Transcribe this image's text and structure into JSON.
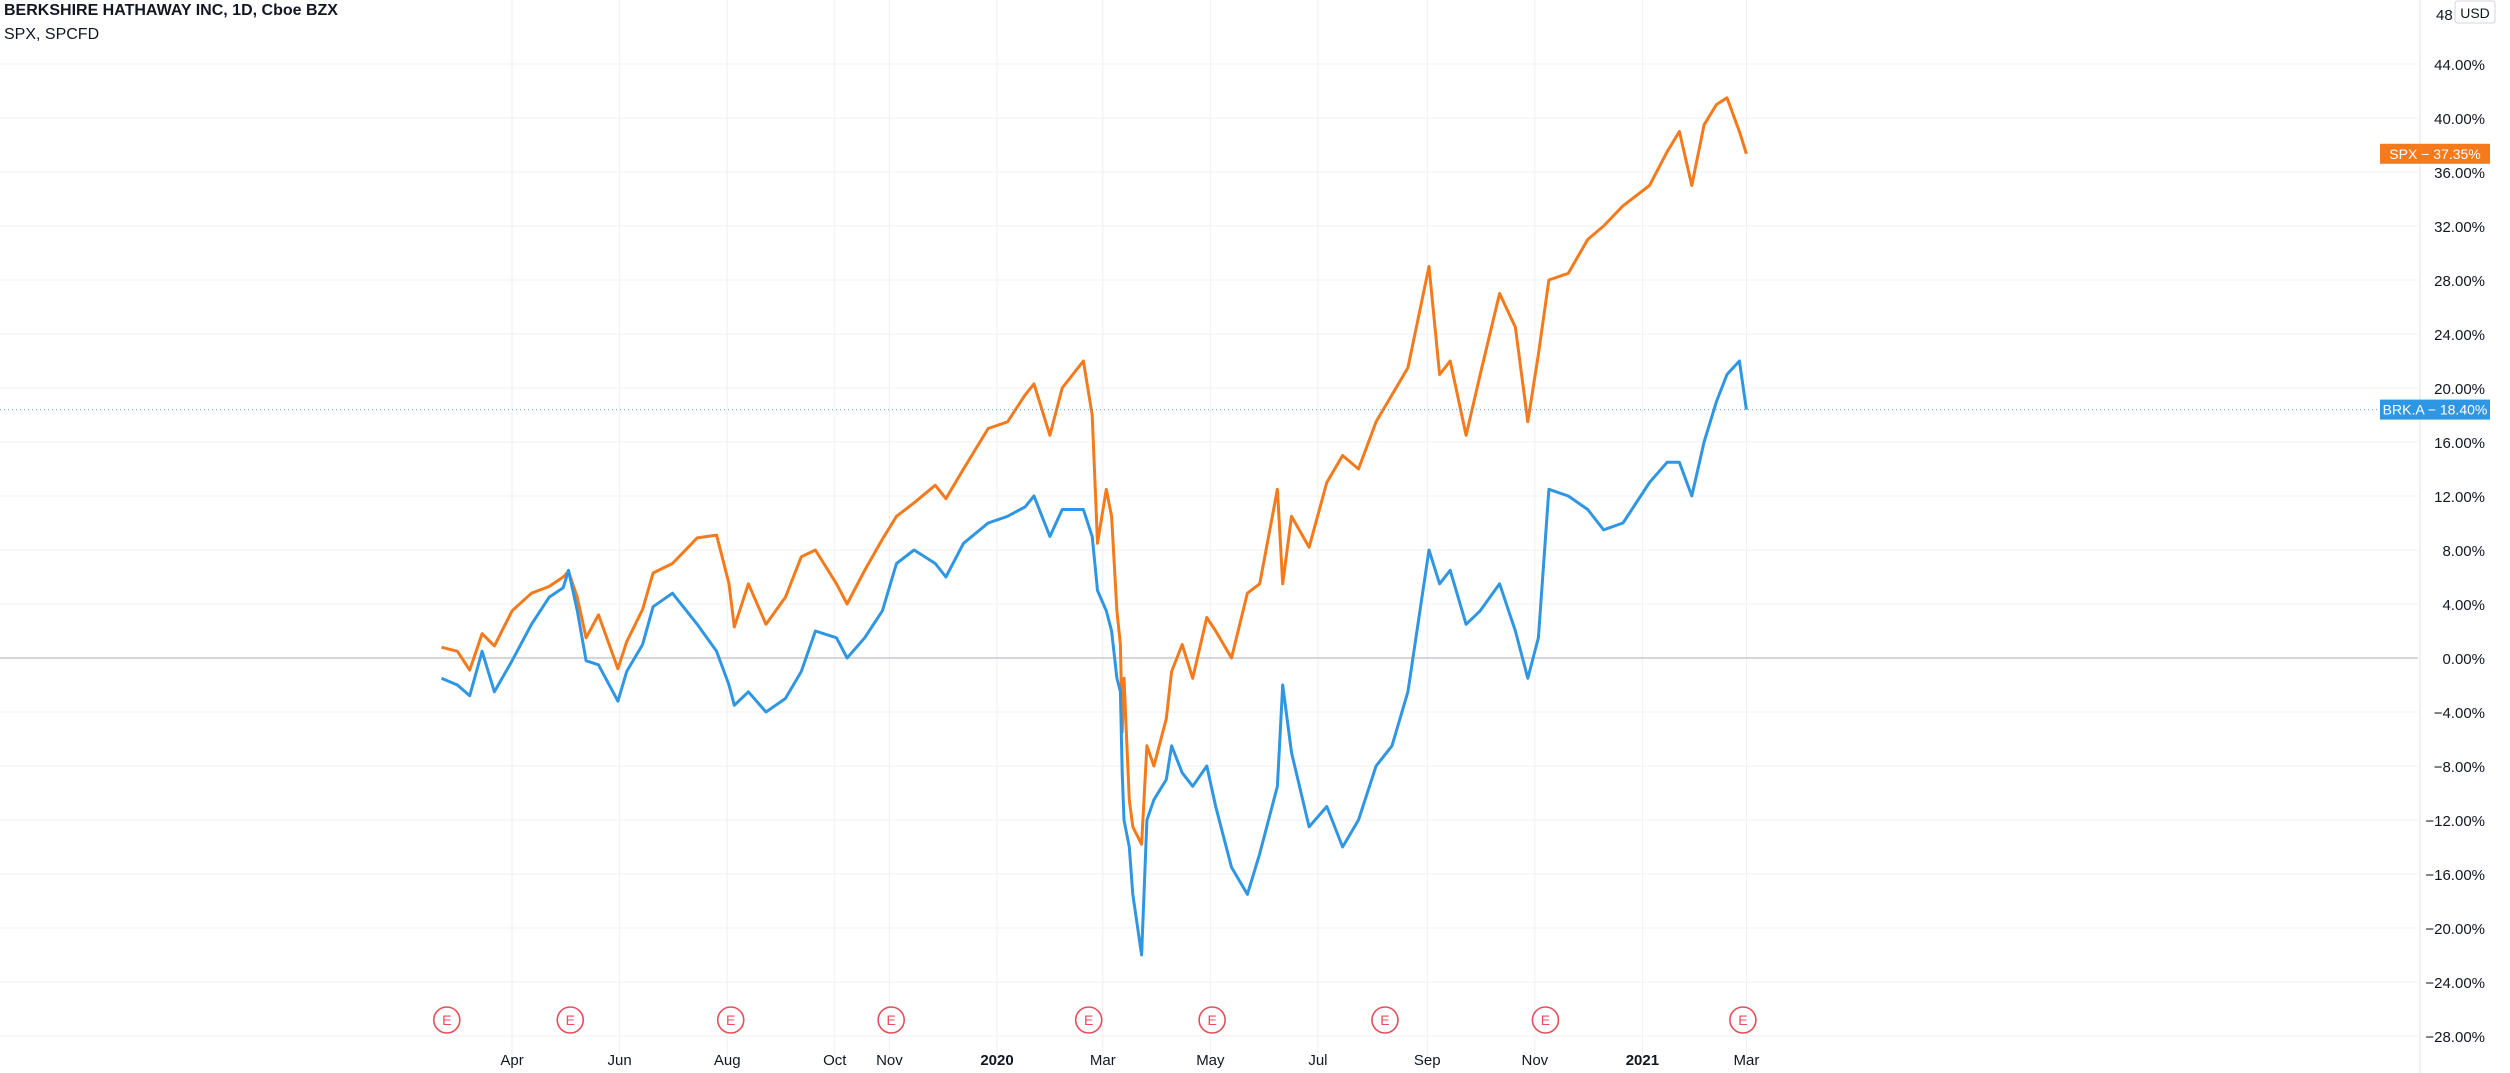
{
  "header": {
    "title": "BERKSHIRE HATHAWAY INC, 1D, Cboe BZX",
    "compare_symbols": "SPX, SPCFD"
  },
  "axis": {
    "currency_badge": "USD",
    "top_partial_label": "48"
  },
  "colors": {
    "spx": "#f57a1b",
    "brk": "#2f96e3",
    "grid": "#eef0f3",
    "zero_line": "#c5c9d1",
    "axis_text": "#131722",
    "earnings": "#e84d5b"
  },
  "earnings_markers": {
    "label": "E",
    "dates": [
      "2019-02-23",
      "2019-05-04",
      "2019-08-03",
      "2019-11-02",
      "2020-02-22",
      "2020-05-02",
      "2020-08-08",
      "2020-11-07",
      "2021-02-27"
    ]
  },
  "chart_data": {
    "type": "line",
    "title": "BERKSHIRE HATHAWAY INC, 1D, Cboe BZX",
    "subtitle": "SPX, SPCFD",
    "xlabel": "",
    "ylabel": "",
    "ylim": [
      -28,
      48
    ],
    "xlim": [
      "2019-02-20",
      "2021-03-15"
    ],
    "grid": true,
    "x_ticks": [
      {
        "date": "2019-04-01",
        "label": "Apr"
      },
      {
        "date": "2019-06-01",
        "label": "Jun"
      },
      {
        "date": "2019-08-01",
        "label": "Aug"
      },
      {
        "date": "2019-10-01",
        "label": "Oct"
      },
      {
        "date": "2019-11-01",
        "label": "Nov"
      },
      {
        "date": "2020-01-01",
        "label": "2020",
        "bold": true
      },
      {
        "date": "2020-03-01",
        "label": "Mar"
      },
      {
        "date": "2020-05-01",
        "label": "May"
      },
      {
        "date": "2020-07-01",
        "label": "Jul"
      },
      {
        "date": "2020-09-01",
        "label": "Sep"
      },
      {
        "date": "2020-11-01",
        "label": "Nov"
      },
      {
        "date": "2021-01-01",
        "label": "2021",
        "bold": true
      },
      {
        "date": "2021-03-01",
        "label": "Mar"
      }
    ],
    "y_ticks": [
      {
        "value": 44,
        "label": "44.00%"
      },
      {
        "value": 40,
        "label": "40.00%"
      },
      {
        "value": 36,
        "label": "36.00%"
      },
      {
        "value": 32,
        "label": "32.00%"
      },
      {
        "value": 28,
        "label": "28.00%"
      },
      {
        "value": 24,
        "label": "24.00%"
      },
      {
        "value": 20,
        "label": "20.00%"
      },
      {
        "value": 16,
        "label": "16.00%"
      },
      {
        "value": 12,
        "label": "12.00%"
      },
      {
        "value": 8,
        "label": "8.00%"
      },
      {
        "value": 4,
        "label": "4.00%"
      },
      {
        "value": 0,
        "label": "0.00%"
      },
      {
        "value": -4,
        "label": "−4.00%"
      },
      {
        "value": -8,
        "label": "−8.00%"
      },
      {
        "value": -12,
        "label": "−12.00%"
      },
      {
        "value": -16,
        "label": "−16.00%"
      },
      {
        "value": -20,
        "label": "−20.00%"
      },
      {
        "value": -24,
        "label": "−24.00%"
      },
      {
        "value": -28,
        "label": "−28.00%"
      }
    ],
    "series": [
      {
        "id": "spx",
        "name": "SPX",
        "last_label": "SPX − 37.35%",
        "last_value": 37.35,
        "points": [
          [
            "2019-02-20",
            0.8
          ],
          [
            "2019-03-01",
            0.5
          ],
          [
            "2019-03-08",
            -0.9
          ],
          [
            "2019-03-15",
            1.8
          ],
          [
            "2019-03-22",
            0.9
          ],
          [
            "2019-04-01",
            3.5
          ],
          [
            "2019-04-12",
            4.8
          ],
          [
            "2019-04-22",
            5.3
          ],
          [
            "2019-04-30",
            6.0
          ],
          [
            "2019-05-03",
            6.4
          ],
          [
            "2019-05-08",
            4.5
          ],
          [
            "2019-05-13",
            1.5
          ],
          [
            "2019-05-20",
            3.2
          ],
          [
            "2019-05-31",
            -0.8
          ],
          [
            "2019-06-05",
            1.2
          ],
          [
            "2019-06-14",
            3.6
          ],
          [
            "2019-06-20",
            6.3
          ],
          [
            "2019-07-01",
            7.0
          ],
          [
            "2019-07-15",
            8.9
          ],
          [
            "2019-07-26",
            9.1
          ],
          [
            "2019-08-02",
            5.5
          ],
          [
            "2019-08-05",
            2.3
          ],
          [
            "2019-08-13",
            5.5
          ],
          [
            "2019-08-23",
            2.5
          ],
          [
            "2019-09-03",
            4.5
          ],
          [
            "2019-09-12",
            7.5
          ],
          [
            "2019-09-20",
            8.0
          ],
          [
            "2019-10-02",
            5.5
          ],
          [
            "2019-10-08",
            4.0
          ],
          [
            "2019-10-18",
            6.5
          ],
          [
            "2019-10-28",
            8.8
          ],
          [
            "2019-11-05",
            10.5
          ],
          [
            "2019-11-15",
            11.5
          ],
          [
            "2019-11-27",
            12.8
          ],
          [
            "2019-12-03",
            11.8
          ],
          [
            "2019-12-13",
            14.0
          ],
          [
            "2019-12-27",
            17.0
          ],
          [
            "2020-01-07",
            17.5
          ],
          [
            "2020-01-17",
            19.5
          ],
          [
            "2020-01-22",
            20.3
          ],
          [
            "2020-01-31",
            16.5
          ],
          [
            "2020-02-07",
            20.0
          ],
          [
            "2020-02-19",
            22.0
          ],
          [
            "2020-02-24",
            18.0
          ],
          [
            "2020-02-27",
            8.5
          ],
          [
            "2020-03-03",
            12.5
          ],
          [
            "2020-03-06",
            10.5
          ],
          [
            "2020-03-09",
            3.5
          ],
          [
            "2020-03-11",
            1.0
          ],
          [
            "2020-03-12",
            -5.5
          ],
          [
            "2020-03-13",
            -1.5
          ],
          [
            "2020-03-16",
            -10.5
          ],
          [
            "2020-03-18",
            -12.5
          ],
          [
            "2020-03-23",
            -13.8
          ],
          [
            "2020-03-26",
            -6.5
          ],
          [
            "2020-03-30",
            -8.0
          ],
          [
            "2020-04-06",
            -4.5
          ],
          [
            "2020-04-09",
            -1.0
          ],
          [
            "2020-04-15",
            1.0
          ],
          [
            "2020-04-21",
            -1.5
          ],
          [
            "2020-04-29",
            3.0
          ],
          [
            "2020-05-04",
            2.0
          ],
          [
            "2020-05-13",
            0.0
          ],
          [
            "2020-05-22",
            4.8
          ],
          [
            "2020-05-29",
            5.5
          ],
          [
            "2020-06-08",
            12.5
          ],
          [
            "2020-06-11",
            5.5
          ],
          [
            "2020-06-16",
            10.5
          ],
          [
            "2020-06-26",
            8.2
          ],
          [
            "2020-07-06",
            13.0
          ],
          [
            "2020-07-15",
            15.0
          ],
          [
            "2020-07-24",
            14.0
          ],
          [
            "2020-08-03",
            17.5
          ],
          [
            "2020-08-12",
            19.5
          ],
          [
            "2020-08-21",
            21.5
          ],
          [
            "2020-09-02",
            29.0
          ],
          [
            "2020-09-08",
            21.0
          ],
          [
            "2020-09-14",
            22.0
          ],
          [
            "2020-09-23",
            16.5
          ],
          [
            "2020-10-01",
            21.0
          ],
          [
            "2020-10-12",
            27.0
          ],
          [
            "2020-10-21",
            24.5
          ],
          [
            "2020-10-28",
            17.5
          ],
          [
            "2020-11-03",
            22.5
          ],
          [
            "2020-11-09",
            28.0
          ],
          [
            "2020-11-20",
            28.5
          ],
          [
            "2020-12-01",
            31.0
          ],
          [
            "2020-12-10",
            32.0
          ],
          [
            "2020-12-21",
            33.5
          ],
          [
            "2021-01-05",
            35.0
          ],
          [
            "2021-01-15",
            37.5
          ],
          [
            "2021-01-22",
            39.0
          ],
          [
            "2021-01-29",
            35.0
          ],
          [
            "2021-02-05",
            39.5
          ],
          [
            "2021-02-12",
            41.0
          ],
          [
            "2021-02-18",
            41.5
          ],
          [
            "2021-02-25",
            39.0
          ],
          [
            "2021-03-01",
            37.35
          ]
        ]
      },
      {
        "id": "brk",
        "name": "BRK.A",
        "last_label": "BRK.A − 18.40%",
        "last_value": 18.4,
        "points": [
          [
            "2019-02-20",
            -1.5
          ],
          [
            "2019-03-01",
            -2.0
          ],
          [
            "2019-03-08",
            -2.8
          ],
          [
            "2019-03-15",
            0.5
          ],
          [
            "2019-03-22",
            -2.5
          ],
          [
            "2019-04-01",
            -0.2
          ],
          [
            "2019-04-12",
            2.5
          ],
          [
            "2019-04-22",
            4.5
          ],
          [
            "2019-04-30",
            5.2
          ],
          [
            "2019-05-03",
            6.5
          ],
          [
            "2019-05-08",
            3.5
          ],
          [
            "2019-05-13",
            -0.2
          ],
          [
            "2019-05-20",
            -0.5
          ],
          [
            "2019-05-31",
            -3.2
          ],
          [
            "2019-06-05",
            -1.0
          ],
          [
            "2019-06-14",
            1.0
          ],
          [
            "2019-06-20",
            3.8
          ],
          [
            "2019-07-01",
            4.8
          ],
          [
            "2019-07-15",
            2.5
          ],
          [
            "2019-07-26",
            0.5
          ],
          [
            "2019-08-02",
            -2.0
          ],
          [
            "2019-08-05",
            -3.5
          ],
          [
            "2019-08-13",
            -2.5
          ],
          [
            "2019-08-23",
            -4.0
          ],
          [
            "2019-09-03",
            -3.0
          ],
          [
            "2019-09-12",
            -1.0
          ],
          [
            "2019-09-20",
            2.0
          ],
          [
            "2019-10-02",
            1.5
          ],
          [
            "2019-10-08",
            0.0
          ],
          [
            "2019-10-18",
            1.5
          ],
          [
            "2019-10-28",
            3.5
          ],
          [
            "2019-11-05",
            7.0
          ],
          [
            "2019-11-15",
            8.0
          ],
          [
            "2019-11-27",
            7.0
          ],
          [
            "2019-12-03",
            6.0
          ],
          [
            "2019-12-13",
            8.5
          ],
          [
            "2019-12-27",
            10.0
          ],
          [
            "2020-01-07",
            10.5
          ],
          [
            "2020-01-17",
            11.2
          ],
          [
            "2020-01-22",
            12.0
          ],
          [
            "2020-01-31",
            9.0
          ],
          [
            "2020-02-07",
            11.0
          ],
          [
            "2020-02-19",
            11.0
          ],
          [
            "2020-02-24",
            9.0
          ],
          [
            "2020-02-27",
            5.0
          ],
          [
            "2020-03-03",
            3.5
          ],
          [
            "2020-03-06",
            2.0
          ],
          [
            "2020-03-09",
            -1.5
          ],
          [
            "2020-03-11",
            -2.5
          ],
          [
            "2020-03-12",
            -8.5
          ],
          [
            "2020-03-13",
            -12.0
          ],
          [
            "2020-03-16",
            -14.0
          ],
          [
            "2020-03-18",
            -17.5
          ],
          [
            "2020-03-23",
            -22.0
          ],
          [
            "2020-03-26",
            -12.0
          ],
          [
            "2020-03-30",
            -10.5
          ],
          [
            "2020-04-06",
            -9.0
          ],
          [
            "2020-04-09",
            -6.5
          ],
          [
            "2020-04-15",
            -8.5
          ],
          [
            "2020-04-21",
            -9.5
          ],
          [
            "2020-04-29",
            -8.0
          ],
          [
            "2020-05-04",
            -11.0
          ],
          [
            "2020-05-13",
            -15.5
          ],
          [
            "2020-05-22",
            -17.5
          ],
          [
            "2020-05-29",
            -14.5
          ],
          [
            "2020-06-08",
            -9.5
          ],
          [
            "2020-06-11",
            -2.0
          ],
          [
            "2020-06-16",
            -7.0
          ],
          [
            "2020-06-26",
            -12.5
          ],
          [
            "2020-07-06",
            -11.0
          ],
          [
            "2020-07-15",
            -14.0
          ],
          [
            "2020-07-24",
            -12.0
          ],
          [
            "2020-08-03",
            -8.0
          ],
          [
            "2020-08-12",
            -6.5
          ],
          [
            "2020-08-21",
            -2.5
          ],
          [
            "2020-09-02",
            8.0
          ],
          [
            "2020-09-08",
            5.5
          ],
          [
            "2020-09-14",
            6.5
          ],
          [
            "2020-09-23",
            2.5
          ],
          [
            "2020-10-01",
            3.5
          ],
          [
            "2020-10-12",
            5.5
          ],
          [
            "2020-10-21",
            2.0
          ],
          [
            "2020-10-28",
            -1.5
          ],
          [
            "2020-11-03",
            1.5
          ],
          [
            "2020-11-09",
            12.5
          ],
          [
            "2020-11-20",
            12.0
          ],
          [
            "2020-12-01",
            11.0
          ],
          [
            "2020-12-10",
            9.5
          ],
          [
            "2020-12-21",
            10.0
          ],
          [
            "2021-01-05",
            13.0
          ],
          [
            "2021-01-15",
            14.5
          ],
          [
            "2021-01-22",
            14.5
          ],
          [
            "2021-01-29",
            12.0
          ],
          [
            "2021-02-05",
            16.0
          ],
          [
            "2021-02-12",
            19.0
          ],
          [
            "2021-02-18",
            21.0
          ],
          [
            "2021-02-25",
            22.0
          ],
          [
            "2021-03-01",
            18.4
          ]
        ]
      }
    ]
  }
}
